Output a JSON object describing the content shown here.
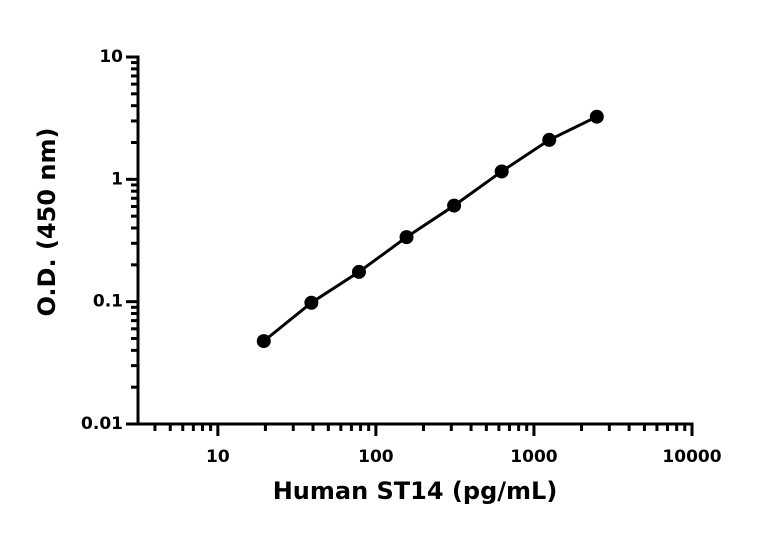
{
  "chart_data": {
    "type": "line",
    "x_label": "Human ST14 (pg/mL)",
    "y_label": "O.D. (450 nm)",
    "x": [
      19.53,
      39.06,
      78.13,
      156.25,
      312.5,
      625,
      1250,
      2500
    ],
    "series": [
      {
        "color": "#000000",
        "values": [
          0.0476,
          0.098,
          0.175,
          0.337,
          0.61,
          1.16,
          2.1,
          3.25
        ]
      }
    ],
    "xlim": [
      3.125,
      10000
    ],
    "xticks": [
      10,
      100,
      1000,
      10000
    ],
    "ylim": [
      0.01,
      10
    ],
    "yticks": [
      0.01,
      0.1,
      1,
      10
    ],
    "xscale": "log",
    "yscale": "log",
    "minor_ticks": true,
    "grid": false,
    "markers": true
  }
}
